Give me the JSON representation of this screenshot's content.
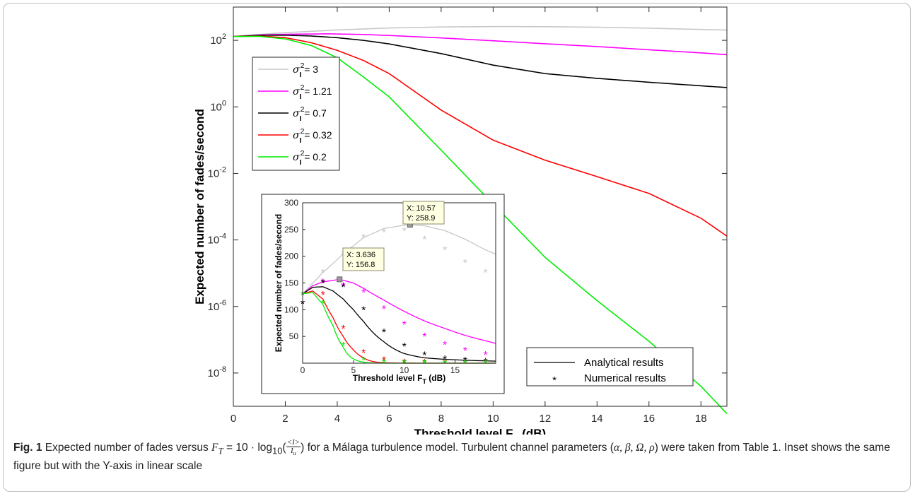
{
  "chart_data": [
    {
      "type": "line",
      "xlabel": "Threshold level F",
      "xlabel_sub": "T",
      "xlabel_unit": " (dB)",
      "ylabel": "Expected number of fades/second",
      "xlim": [
        0,
        19
      ],
      "ylim": [
        1e-09,
        1000
      ],
      "yscale": "log",
      "xticks": [
        0,
        2,
        4,
        6,
        8,
        10,
        12,
        14,
        16,
        18
      ],
      "yticks": [
        {
          "exp": "2",
          "value": 100
        },
        {
          "exp": "0",
          "value": 1
        },
        {
          "exp": "-2",
          "value": 0.01
        },
        {
          "exp": "-4",
          "value": 0.0001
        },
        {
          "exp": "-6",
          "value": 1e-06
        },
        {
          "exp": "-8",
          "value": 1e-08
        }
      ],
      "legend_location": "upper-left",
      "series": [
        {
          "name": "σ_I^2 = 3",
          "label_rhs": " = 3",
          "color": "#c8c8c8",
          "x": [
            0,
            1,
            2,
            4,
            6,
            8,
            10,
            11,
            12,
            14,
            16,
            18,
            19
          ],
          "y": [
            130,
            150,
            170,
            205,
            235,
            252,
            258.9,
            259,
            257,
            248,
            232,
            212,
            204
          ]
        },
        {
          "name": "σ_I^2 = 1.21",
          "label_rhs": " = 1.21",
          "color": "#ff00ff",
          "x": [
            0,
            1,
            2,
            3.636,
            5,
            6,
            8,
            10,
            12,
            14,
            16,
            18,
            19
          ],
          "y": [
            130,
            145,
            152,
            156.8,
            150,
            140,
            118,
            97,
            79,
            65,
            52,
            42,
            37
          ]
        },
        {
          "name": "σ_I^2 = 0.7",
          "label_rhs": " = 0.7",
          "color": "#000000",
          "x": [
            0,
            1,
            2,
            3,
            4,
            5,
            6,
            8,
            10,
            12,
            14,
            16,
            18,
            19
          ],
          "y": [
            130,
            142,
            143,
            135,
            120,
            100,
            78,
            40,
            18,
            10,
            7.2,
            5.5,
            4.3,
            3.8
          ]
        },
        {
          "name": "σ_I^2 = 0.32",
          "label_rhs": " = 0.32",
          "color": "#ff0000",
          "x": [
            0,
            1,
            2,
            3,
            4,
            5,
            6,
            8,
            10,
            12,
            14,
            16,
            18,
            19
          ],
          "y": [
            130,
            135,
            120,
            85,
            50,
            25,
            10,
            0.8,
            0.1,
            0.025,
            0.008,
            0.0025,
            0.00045,
            0.00013
          ]
        },
        {
          "name": "σ_I^2 = 0.2",
          "label_rhs": " = 0.2",
          "color": "#00ee00",
          "x": [
            0,
            1,
            2,
            3,
            4,
            5,
            6,
            8,
            10,
            12,
            14,
            16,
            18,
            19
          ],
          "y": [
            130,
            132,
            110,
            70,
            30,
            8,
            2,
            0.05,
            0.0012,
            3e-05,
            1.5e-06,
            9e-08,
            4e-09,
            6e-10
          ]
        }
      ]
    },
    {
      "type": "line",
      "xlabel": "Threshold level F",
      "xlabel_sub": "T",
      "xlabel_unit": " (dB)",
      "ylabel": "Expected number of fades/second",
      "xlim": [
        0,
        19
      ],
      "ylim": [
        0,
        300
      ],
      "yscale": "linear",
      "xticks": [
        0,
        5,
        10,
        15
      ],
      "yticks": [
        50,
        100,
        150,
        200,
        250,
        300
      ],
      "legend_location": "lower-right",
      "legend": [
        {
          "marker": "line",
          "label": "Analytical results"
        },
        {
          "marker": "*",
          "label": "Numerical results"
        }
      ],
      "annotations": [
        {
          "x": 10.57,
          "y": 258.9,
          "text1": "X: 10.57",
          "text2": "Y: 258.9"
        },
        {
          "x": 3.636,
          "y": 156.8,
          "text1": "X: 3.636",
          "text2": "Y: 156.8"
        }
      ],
      "series": [
        {
          "name": "σ_I^2 = 3",
          "color": "#c8c8c8",
          "x": [
            0,
            1,
            2,
            4,
            6,
            8,
            10,
            10.57,
            12,
            14,
            16,
            18,
            19
          ],
          "y": [
            130,
            150,
            170,
            205,
            235,
            252,
            258,
            258.9,
            257,
            248,
            232,
            212,
            204
          ],
          "numerical_x": [
            0,
            2,
            4,
            6,
            8,
            10,
            12,
            14,
            16,
            18
          ],
          "numerical_y": [
            112,
            170,
            205,
            235,
            245,
            248,
            232,
            212,
            188,
            170
          ]
        },
        {
          "name": "σ_I^2 = 1.21",
          "color": "#ff00ff",
          "x": [
            0,
            1,
            2,
            3.636,
            5,
            6,
            8,
            10,
            12,
            14,
            16,
            18,
            19
          ],
          "y": [
            130,
            145,
            152,
            156.8,
            150,
            140,
            118,
            97,
            79,
            65,
            52,
            42,
            37
          ],
          "numerical_x": [
            0,
            2,
            4,
            6,
            8,
            10,
            12,
            14,
            16,
            18
          ],
          "numerical_y": [
            112,
            152,
            145,
            133,
            102,
            73,
            50,
            35,
            24,
            16
          ]
        },
        {
          "name": "σ_I^2 = 0.7",
          "color": "#000000",
          "x": [
            0,
            1,
            2,
            3,
            4,
            5,
            6,
            8,
            10,
            12,
            14,
            16,
            18,
            19
          ],
          "y": [
            130,
            142,
            143,
            135,
            120,
            100,
            78,
            40,
            18,
            10,
            7.2,
            5.5,
            4.3,
            3.8
          ],
          "numerical_x": [
            0,
            2,
            4,
            6,
            8,
            10,
            12,
            14,
            16,
            18
          ],
          "numerical_y": [
            112,
            150,
            143,
            100,
            58,
            32,
            15,
            8,
            5,
            3
          ]
        },
        {
          "name": "σ_I^2 = 0.32",
          "color": "#ff0000",
          "x": [
            0,
            1,
            2,
            3,
            4,
            5,
            6,
            8,
            10,
            12,
            14,
            16,
            18,
            19
          ],
          "y": [
            130,
            135,
            120,
            85,
            50,
            25,
            10,
            0.8,
            0.1,
            0.025,
            0.008,
            0.0025,
            0.00045,
            0.00013
          ],
          "numerical_x": [
            0,
            2,
            4,
            6,
            8,
            10,
            12,
            14,
            16,
            18
          ],
          "numerical_y": [
            128,
            128,
            65,
            20,
            6,
            2,
            1,
            0.5,
            0.2,
            0.1
          ]
        },
        {
          "name": "σ_I^2 = 0.2",
          "color": "#00ee00",
          "x": [
            0,
            1,
            2,
            3,
            4,
            5,
            6,
            8,
            10,
            12,
            14,
            16,
            18,
            19
          ],
          "y": [
            130,
            132,
            110,
            70,
            30,
            8,
            2,
            0.05,
            0.0012,
            3e-05,
            1.5e-06,
            9e-08,
            4e-09,
            6e-10
          ],
          "numerical_x": [
            0,
            2,
            4,
            6,
            8,
            10,
            12,
            14,
            16,
            18
          ],
          "numerical_y": [
            128,
            112,
            33,
            6,
            1,
            0.5,
            0.2,
            0.1,
            0.1,
            0.1
          ]
        }
      ]
    }
  ],
  "caption": {
    "label": "Fig. 1",
    "text_1": " Expected number of fades versus ",
    "ft": "F",
    "ft_sub": "T",
    "text_2": " = 10 · log",
    "log_sub": "10",
    "frac_num": "<I>",
    "frac_den": "I",
    "frac_den_sub": "u",
    "text_3": " for a Málaga turbulence model. Turbulent channel parameters (",
    "params": "α, β, Ω, ρ",
    "text_4": ") were taken from Table 1. Inset shows the same figure but with the Y-axis in linear scale"
  }
}
